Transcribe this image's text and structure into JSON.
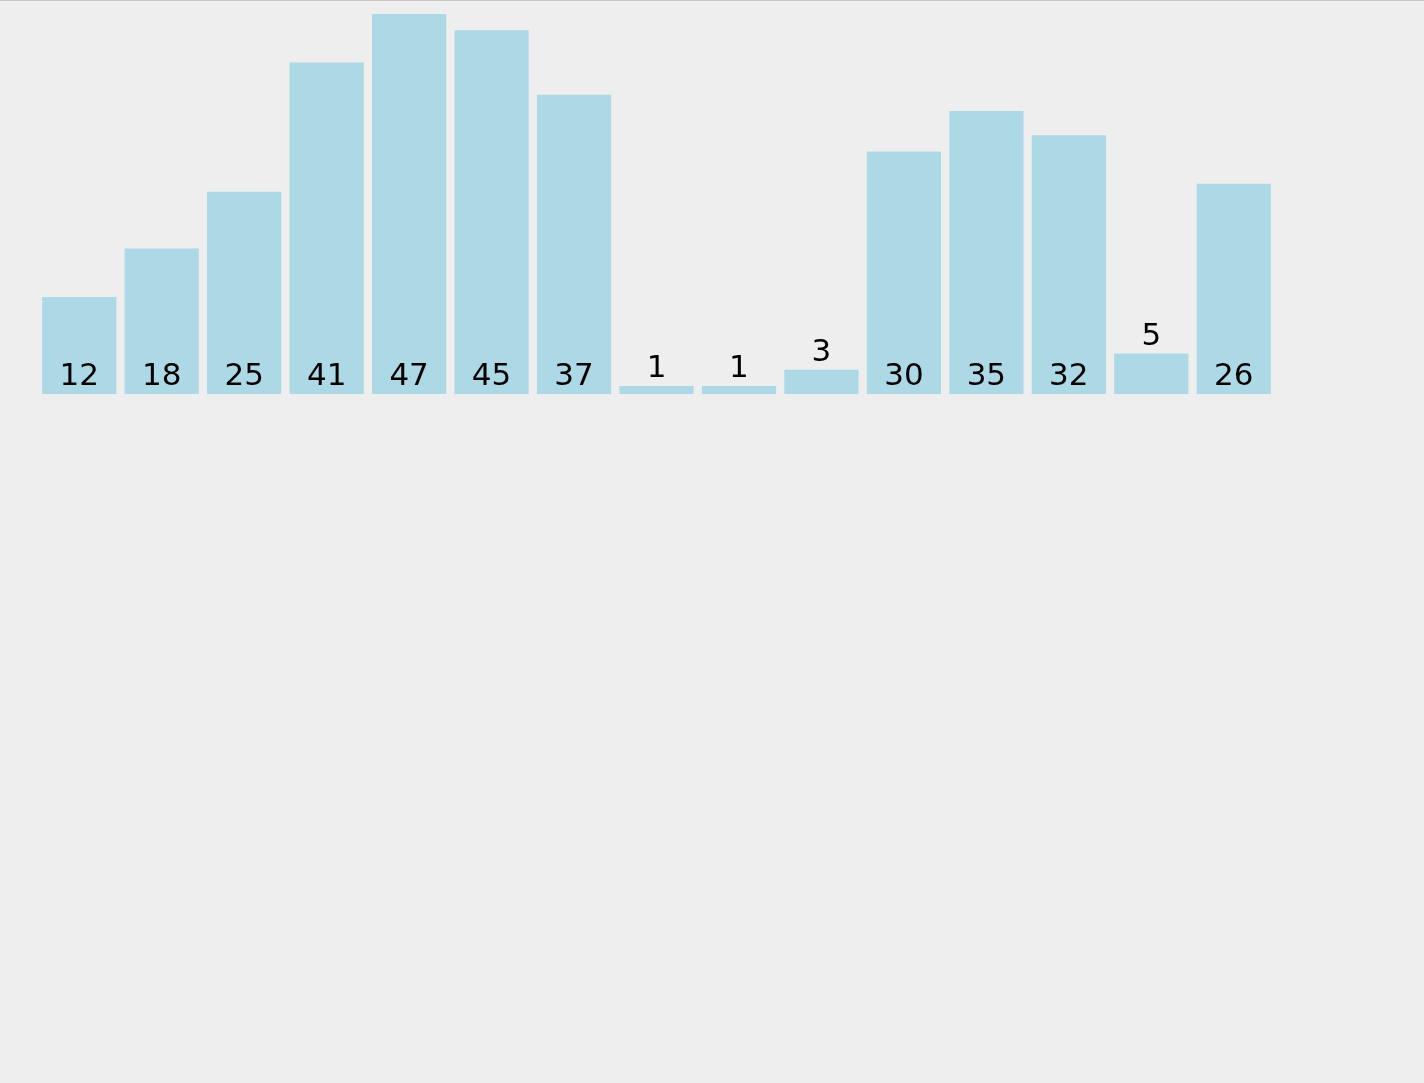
{
  "chart_data": {
    "type": "bar",
    "categories": [
      null,
      null,
      null,
      null,
      null,
      null,
      null,
      null,
      null,
      null,
      null,
      null,
      null,
      null,
      null
    ],
    "values": [
      12,
      18,
      25,
      41,
      47,
      45,
      37,
      1,
      1,
      3,
      30,
      35,
      32,
      5,
      26
    ],
    "color": "#add8e6",
    "data_labels": true,
    "tick_labels": false
  }
}
